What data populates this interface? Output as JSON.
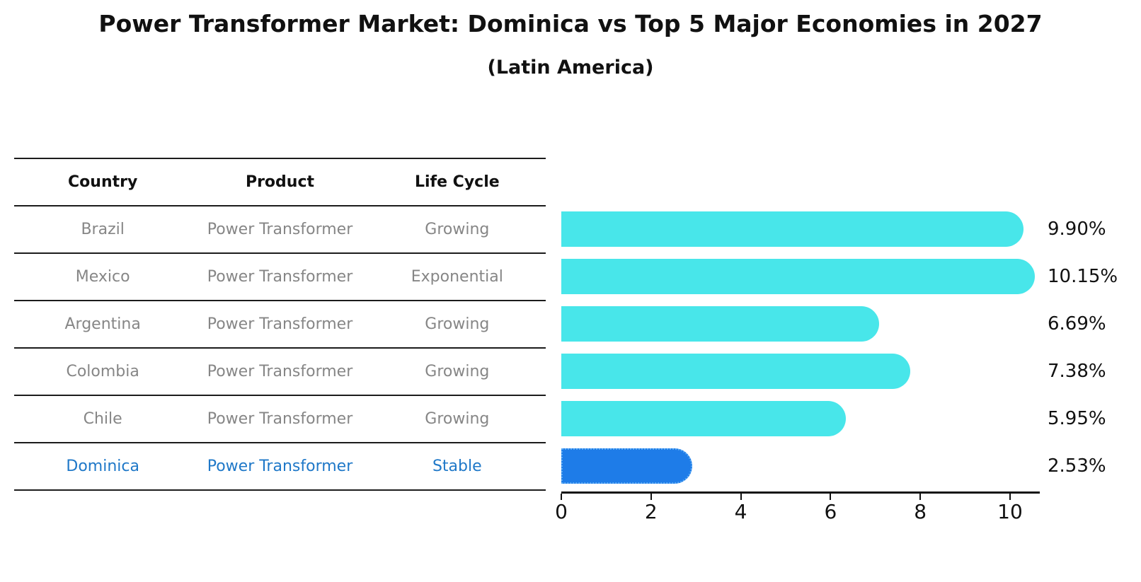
{
  "page": {
    "title": "Power Transformer Market: Dominica vs Top 5 Major Economies in 2027",
    "subtitle": "(Latin America)"
  },
  "colors": {
    "bar_cyan": "#48e6ea",
    "bar_blue": "#1e7ce8",
    "bar_blue_dotted_border": "#5aaaf5",
    "highlight_text_blue": "#1f78c8",
    "table_text_gray": "#868686",
    "text_black": "#111111",
    "line_dark": "#1c1c1c"
  },
  "table": {
    "columns": [
      "Country",
      "Product",
      "Life Cycle"
    ],
    "rows": [
      {
        "country": "Brazil",
        "product": "Power Transformer",
        "life_cycle": "Growing",
        "highlight": false
      },
      {
        "country": "Mexico",
        "product": "Power Transformer",
        "life_cycle": "Exponential",
        "highlight": false
      },
      {
        "country": "Argentina",
        "product": "Power Transformer",
        "life_cycle": "Growing",
        "highlight": false
      },
      {
        "country": "Colombia",
        "product": "Power Transformer",
        "life_cycle": "Growing",
        "highlight": false
      },
      {
        "country": "Chile",
        "product": "Power Transformer",
        "life_cycle": "Growing",
        "highlight": false
      },
      {
        "country": "Dominica",
        "product": "Power Transformer",
        "life_cycle": "Stable",
        "highlight": true
      }
    ]
  },
  "chart_data": {
    "type": "bar",
    "orientation": "horizontal",
    "title": "Power Transformer Market: Dominica vs Top 5 Major Economies in 2027",
    "subtitle": "(Latin America)",
    "categories": [
      "Brazil",
      "Mexico",
      "Argentina",
      "Colombia",
      "Chile",
      "Dominica"
    ],
    "values": [
      9.9,
      10.15,
      6.69,
      7.38,
      5.95,
      2.53
    ],
    "value_labels": [
      "9.90%",
      "10.15%",
      "6.69%",
      "7.38%",
      "5.95%",
      "2.53%"
    ],
    "x_ticks": [
      0,
      2,
      4,
      6,
      8,
      10
    ],
    "x_tick_labels": [
      "0",
      "2",
      "4",
      "6",
      "8",
      "10"
    ],
    "xlim": [
      0,
      10.7
    ],
    "grid": false,
    "legend": false,
    "highlight_index": 5
  }
}
